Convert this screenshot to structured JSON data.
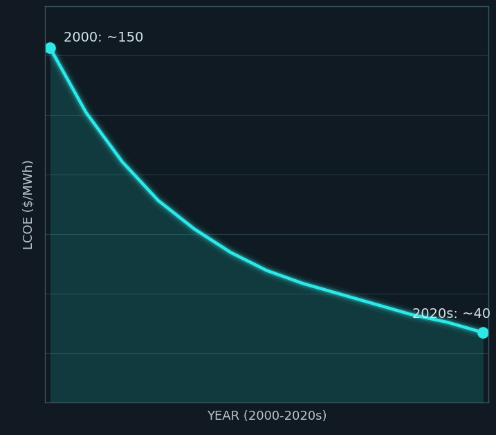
{
  "chart_data": {
    "type": "line",
    "x_label": "YEAR (2000-2020s)",
    "y_label": "LCOE ($/MWh)",
    "categories": [
      null,
      null,
      null,
      null,
      null,
      null,
      null,
      null,
      null,
      null,
      null,
      null,
      null
    ],
    "values": [
      150,
      125,
      106,
      91,
      80,
      71,
      64,
      59,
      55,
      51,
      47,
      44,
      40
    ],
    "annotations": [
      "2000: ~150",
      "2020s: ~40"
    ],
    "ylim": [
      13,
      166
    ],
    "yticks": [
      32,
      55,
      78,
      101,
      124,
      147
    ],
    "color": "#2ee8e8",
    "marker": "o",
    "line_style": "solid",
    "grid": true,
    "tick_labels": false
  }
}
